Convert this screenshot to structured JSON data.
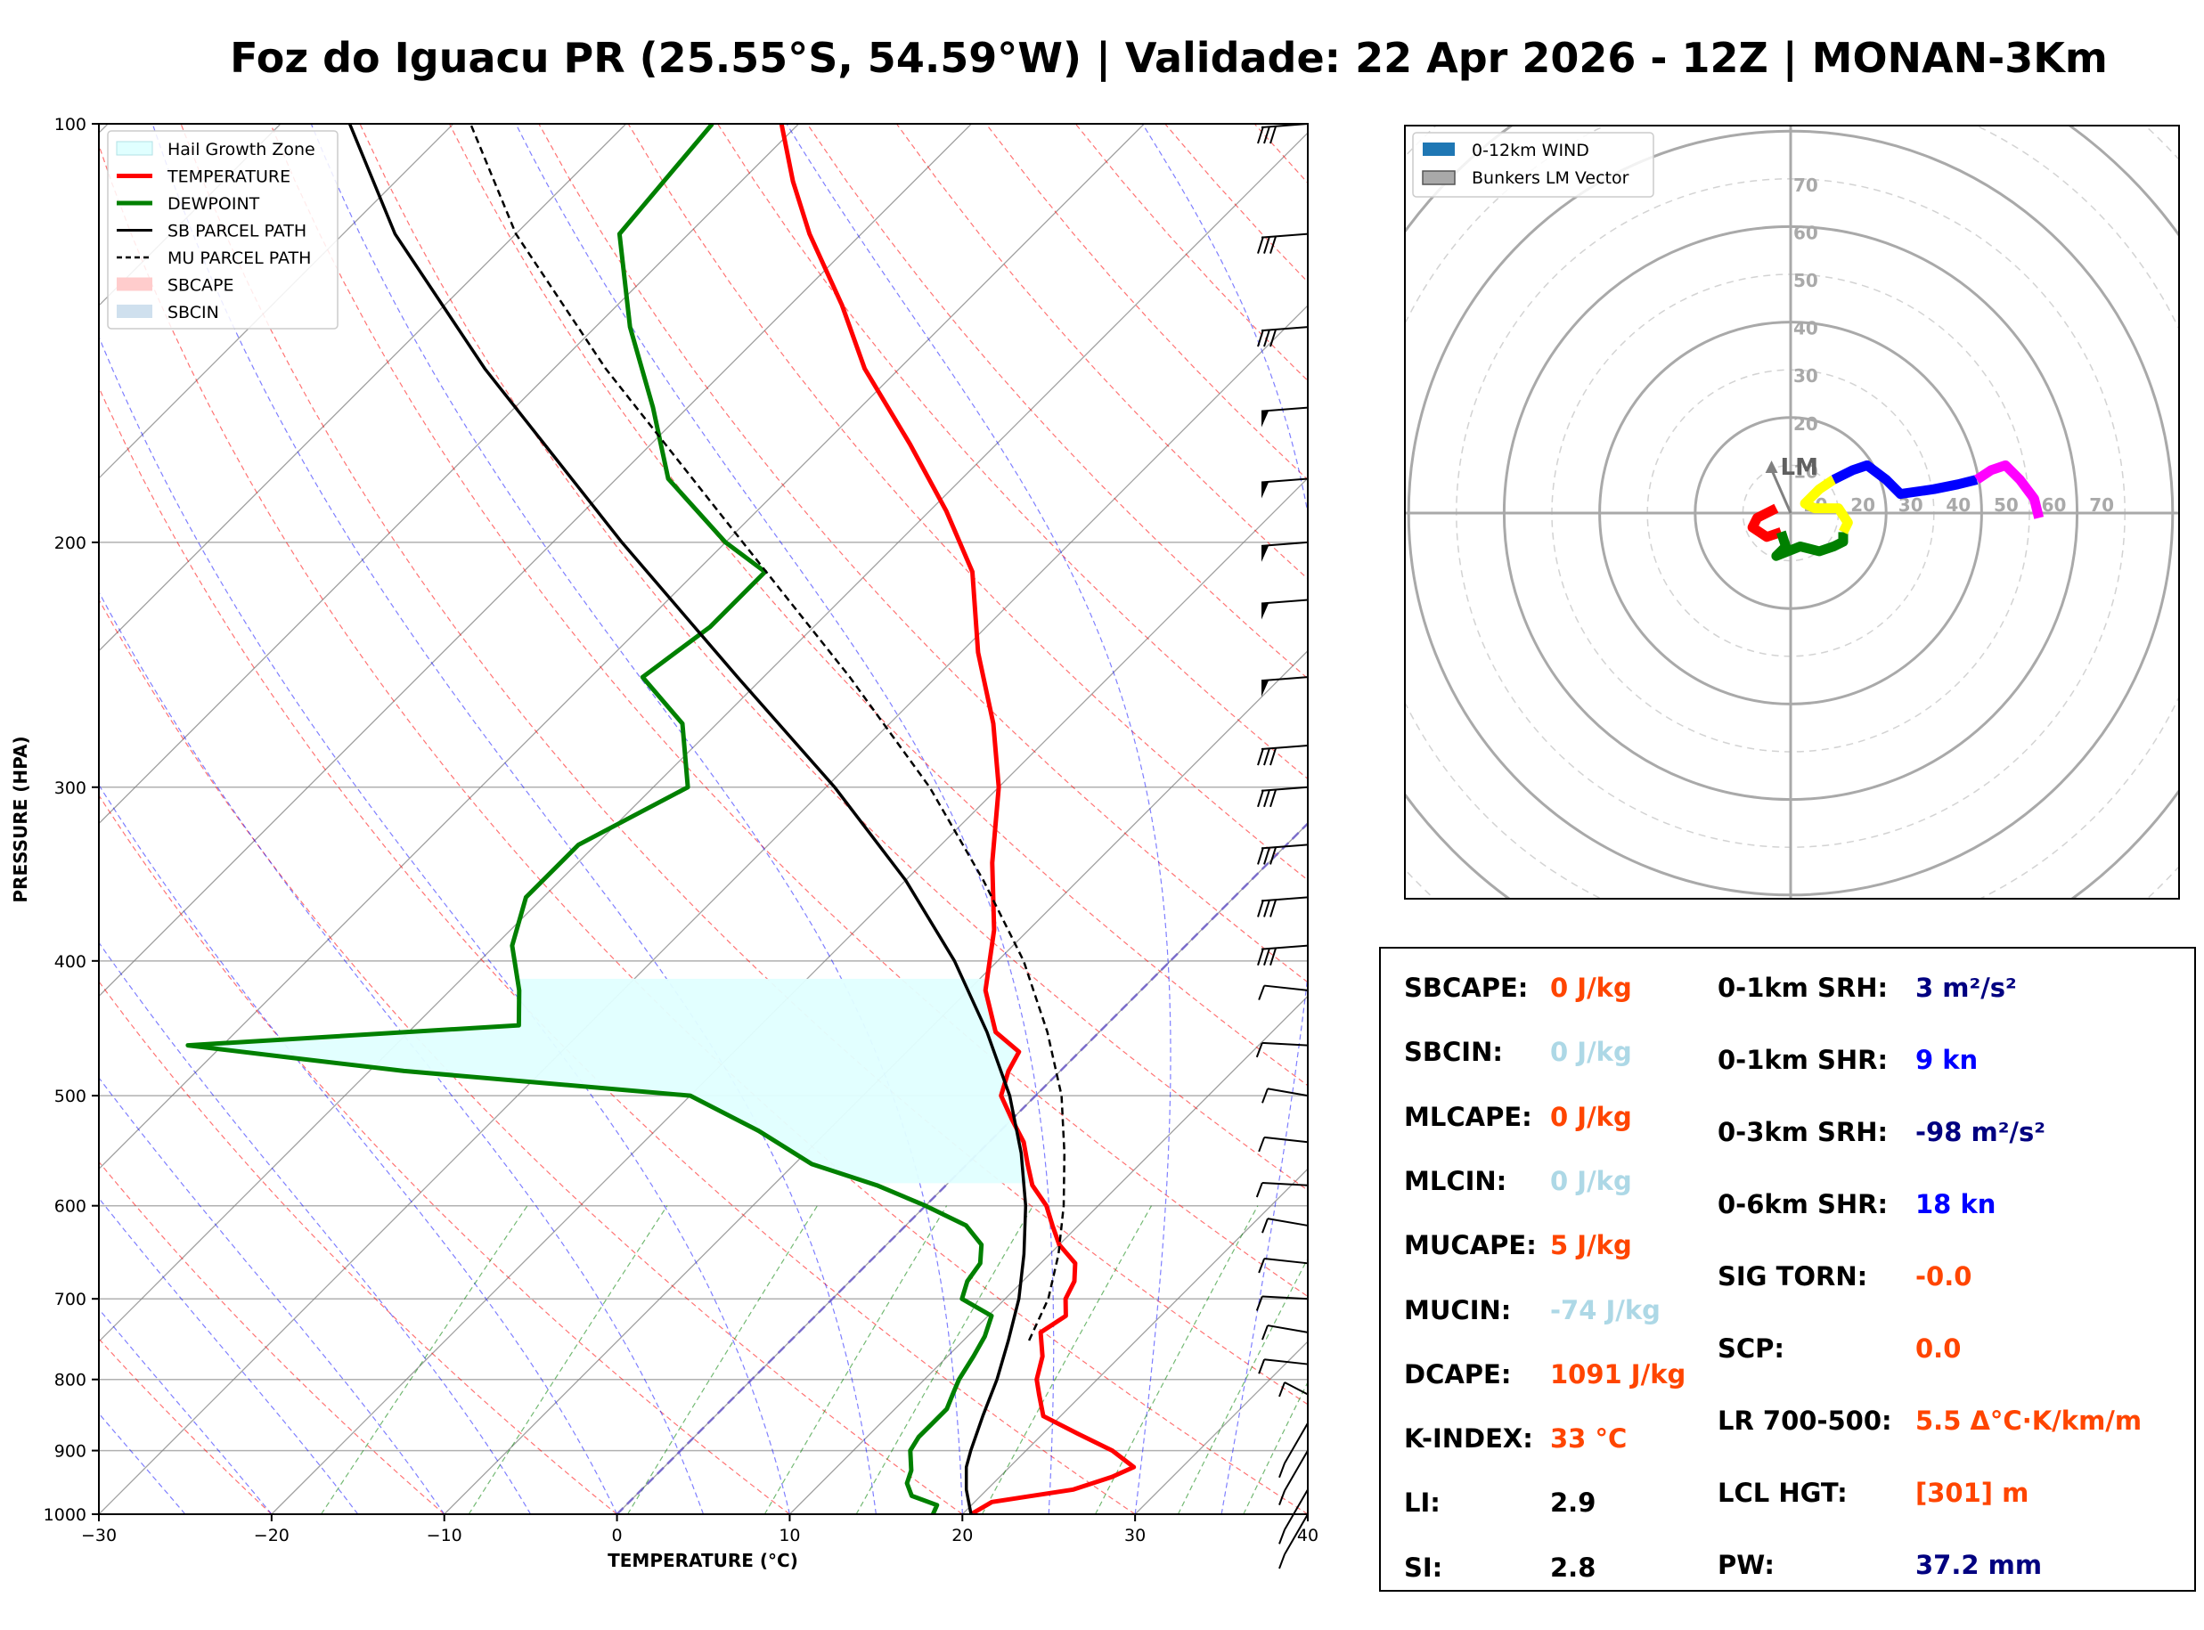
{
  "title": "Foz do Iguacu PR (25.55°S, 54.59°W) | Validade: 22 Apr 2026 - 12Z | MONAN-3Km",
  "colors": {
    "temperature": "#ff0000",
    "dewpoint": "#008000",
    "parcel": "#000000",
    "hgz": "#e0ffff",
    "dry_adiabat": "#ff0000",
    "moist_adiabat": "#0000ff",
    "mixing_ratio": "#008000",
    "isotherm": "#808080"
  },
  "chart_data": [
    {
      "type": "line",
      "name": "skew-t",
      "xlabel": "TEMPERATURE (°C)",
      "ylabel": "PRESSURE (HPA)",
      "xlim": [
        -30,
        40
      ],
      "ylim": [
        1000,
        100
      ],
      "y_scale": "log",
      "x_ticks": [
        "−30",
        "−20",
        "−10",
        "0",
        "10",
        "20",
        "30",
        "40"
      ],
      "y_ticks": [
        "100",
        "200",
        "300",
        "400",
        "500",
        "600",
        "700",
        "800",
        "900",
        "1000"
      ],
      "grid": true,
      "legend_placement": "top-left",
      "legend": [
        "Hail Growth Zone",
        "TEMPERATURE",
        "DEWPOINT",
        "SB PARCEL PATH",
        "MU PARCEL PATH",
        "SBCAPE",
        "SBCIN"
      ],
      "hail_growth_zone": {
        "p_bottom": 578,
        "p_top": 412
      },
      "series": [
        {
          "name": "TEMPERATURE",
          "points": [
            [
              1000,
              20.5
            ],
            [
              980,
              21
            ],
            [
              960,
              25
            ],
            [
              940,
              26.5
            ],
            [
              925,
              27.2
            ],
            [
              900,
              25
            ],
            [
              875,
              22
            ],
            [
              850,
              19
            ],
            [
              820,
              17.5
            ],
            [
              800,
              16.5
            ],
            [
              770,
              15.5
            ],
            [
              740,
              14
            ],
            [
              720,
              14.5
            ],
            [
              700,
              13.5
            ],
            [
              680,
              13
            ],
            [
              660,
              12
            ],
            [
              640,
              10
            ],
            [
              620,
              8.5
            ],
            [
              600,
              7
            ],
            [
              580,
              5
            ],
            [
              560,
              3.5
            ],
            [
              540,
              2
            ],
            [
              520,
              0
            ],
            [
              500,
              -2
            ],
            [
              480,
              -3
            ],
            [
              465,
              -3.5
            ],
            [
              450,
              -6
            ],
            [
              420,
              -9
            ],
            [
              380,
              -12
            ],
            [
              340,
              -16
            ],
            [
              300,
              -20
            ],
            [
              270,
              -24
            ],
            [
              240,
              -29
            ],
            [
              210,
              -34
            ],
            [
              190,
              -39
            ],
            [
              170,
              -45
            ],
            [
              150,
              -52
            ],
            [
              135,
              -57
            ],
            [
              120,
              -63
            ],
            [
              110,
              -67
            ],
            [
              100,
              -71
            ]
          ]
        },
        {
          "name": "DEWPOINT",
          "points": [
            [
              1000,
              18.3
            ],
            [
              985,
              18
            ],
            [
              970,
              16
            ],
            [
              950,
              15
            ],
            [
              930,
              14.5
            ],
            [
              900,
              13.3
            ],
            [
              880,
              13
            ],
            [
              860,
              13
            ],
            [
              840,
              13
            ],
            [
              820,
              12.5
            ],
            [
              800,
              12
            ],
            [
              770,
              11.5
            ],
            [
              745,
              11
            ],
            [
              720,
              10.2
            ],
            [
              700,
              7.5
            ],
            [
              680,
              6.8
            ],
            [
              660,
              6.5
            ],
            [
              640,
              5.5
            ],
            [
              620,
              3.5
            ],
            [
              600,
              0
            ],
            [
              580,
              -4
            ],
            [
              560,
              -9
            ],
            [
              530,
              -14
            ],
            [
              500,
              -20
            ],
            [
              480,
              -38
            ],
            [
              470,
              -45
            ],
            [
              460,
              -52
            ],
            [
              445,
              -34
            ],
            [
              420,
              -36
            ],
            [
              390,
              -39
            ],
            [
              360,
              -41
            ],
            [
              330,
              -41
            ],
            [
              300,
              -38
            ],
            [
              270,
              -42
            ],
            [
              250,
              -47
            ],
            [
              230,
              -46
            ],
            [
              210,
              -46
            ],
            [
              200,
              -50
            ],
            [
              180,
              -57
            ],
            [
              160,
              -62
            ],
            [
              140,
              -68
            ],
            [
              120,
              -74
            ],
            [
              100,
              -75
            ]
          ]
        },
        {
          "name": "SB PARCEL PATH",
          "points": [
            [
              1000,
              20.5
            ],
            [
              960,
              18.8
            ],
            [
              925,
              17.5
            ],
            [
              900,
              16.8
            ],
            [
              850,
              15.5
            ],
            [
              800,
              14.2
            ],
            [
              750,
              12.6
            ],
            [
              700,
              10.8
            ],
            [
              650,
              8.5
            ],
            [
              600,
              5.8
            ],
            [
              550,
              2.5
            ],
            [
              500,
              -1.5
            ],
            [
              450,
              -6.5
            ],
            [
              400,
              -12.5
            ],
            [
              350,
              -20
            ],
            [
              300,
              -29.5
            ],
            [
              250,
              -41.5
            ],
            [
              200,
              -56
            ],
            [
              150,
              -74
            ],
            [
              120,
              -87
            ],
            [
              100,
              -96
            ]
          ]
        },
        {
          "name": "MU PARCEL PATH",
          "points": [
            [
              750,
              13.8
            ],
            [
              700,
              12.5
            ],
            [
              650,
              10.5
            ],
            [
              600,
              8
            ],
            [
              550,
              5
            ],
            [
              500,
              1.5
            ],
            [
              450,
              -3
            ],
            [
              400,
              -8.5
            ],
            [
              350,
              -15.5
            ],
            [
              300,
              -24
            ],
            [
              250,
              -35
            ],
            [
              200,
              -49
            ],
            [
              150,
              -67
            ],
            [
              120,
              -80
            ],
            [
              100,
              -89
            ]
          ]
        }
      ],
      "wind_barbs_pressures": [
        100,
        120,
        140,
        160,
        180,
        200,
        220,
        250,
        280,
        300,
        330,
        360,
        390,
        420,
        460,
        500,
        540,
        580,
        620,
        660,
        700,
        740,
        780,
        820,
        860,
        900,
        960,
        1000
      ]
    },
    {
      "type": "line",
      "name": "hodograph",
      "legend_placement": "top-left",
      "legend": [
        "0-12km WIND",
        "Bunkers LM Vector"
      ],
      "ring_labels": [
        "10",
        "20",
        "30",
        "40",
        "50",
        "60",
        "70"
      ],
      "lm_label": "LM",
      "lm_vector": [
        -4,
        11
      ],
      "segments": [
        {
          "color": "#ff0000",
          "points": [
            [
              -2,
              -4
            ],
            [
              -5,
              -5
            ],
            [
              -8,
              -3
            ],
            [
              -7,
              -1
            ],
            [
              -3,
              1
            ]
          ]
        },
        {
          "color": "#008000",
          "points": [
            [
              -2,
              -4
            ],
            [
              -1,
              -7
            ],
            [
              -3,
              -9
            ],
            [
              2,
              -7
            ],
            [
              6,
              -8
            ],
            [
              9,
              -7
            ],
            [
              11,
              -6
            ],
            [
              11,
              -4
            ]
          ]
        },
        {
          "color": "#ffff00",
          "points": [
            [
              11,
              -4
            ],
            [
              12,
              -2
            ],
            [
              10,
              1
            ],
            [
              5,
              1
            ],
            [
              3,
              2
            ],
            [
              6,
              5
            ],
            [
              9,
              7
            ]
          ]
        },
        {
          "color": "#0000ff",
          "points": [
            [
              9,
              7
            ],
            [
              13,
              9
            ],
            [
              16,
              10
            ],
            [
              20,
              7
            ],
            [
              23,
              4
            ],
            [
              30,
              5
            ],
            [
              35,
              6
            ],
            [
              39,
              7
            ]
          ]
        },
        {
          "color": "#ff00ff",
          "points": [
            [
              39,
              7
            ],
            [
              42,
              9
            ],
            [
              45,
              10
            ],
            [
              48,
              7
            ],
            [
              51,
              3
            ],
            [
              52,
              -1
            ]
          ]
        }
      ]
    }
  ],
  "params_left": [
    {
      "label": "SBCAPE:",
      "value": "0 J/kg",
      "color": "#ff4500"
    },
    {
      "label": "SBCIN:",
      "value": "0 J/kg",
      "color": "#add8e6"
    },
    {
      "label": "MLCAPE:",
      "value": "0 J/kg",
      "color": "#ff4500"
    },
    {
      "label": "MLCIN:",
      "value": "0 J/kg",
      "color": "#add8e6"
    },
    {
      "label": "MUCAPE:",
      "value": "5 J/kg",
      "color": "#ff4500"
    },
    {
      "label": "MUCIN:",
      "value": "-74 J/kg",
      "color": "#add8e6"
    },
    {
      "label": "DCAPE:",
      "value": "1091 J/kg",
      "color": "#ff4500"
    },
    {
      "label": "K-INDEX:",
      "value": "33 °C",
      "color": "#ff4500"
    },
    {
      "label": "LI:",
      "value": "2.9",
      "color": "#000000"
    },
    {
      "label": "SI:",
      "value": "2.8",
      "color": "#000000"
    }
  ],
  "params_right": [
    {
      "label": "0-1km SRH:",
      "value": "3 m²/s²",
      "color": "#000080"
    },
    {
      "label": "0-1km SHR:",
      "value": "9 kn",
      "color": "#0000ff"
    },
    {
      "label": "0-3km SRH:",
      "value": "-98 m²/s²",
      "color": "#000080"
    },
    {
      "label": "0-6km SHR:",
      "value": "18 kn",
      "color": "#0000ff"
    },
    {
      "label": "SIG TORN:",
      "value": "-0.0",
      "color": "#ff4500"
    },
    {
      "label": "SCP:",
      "value": "0.0",
      "color": "#ff4500"
    },
    {
      "label": "LR 700-500:",
      "value": "5.5 Δ°C·K/km/m",
      "color": "#ff4500"
    },
    {
      "label": "LCL HGT:",
      "value": "[301] m",
      "color": "#ff4500"
    },
    {
      "label": "PW:",
      "value": "37.2 mm",
      "color": "#000080"
    }
  ]
}
